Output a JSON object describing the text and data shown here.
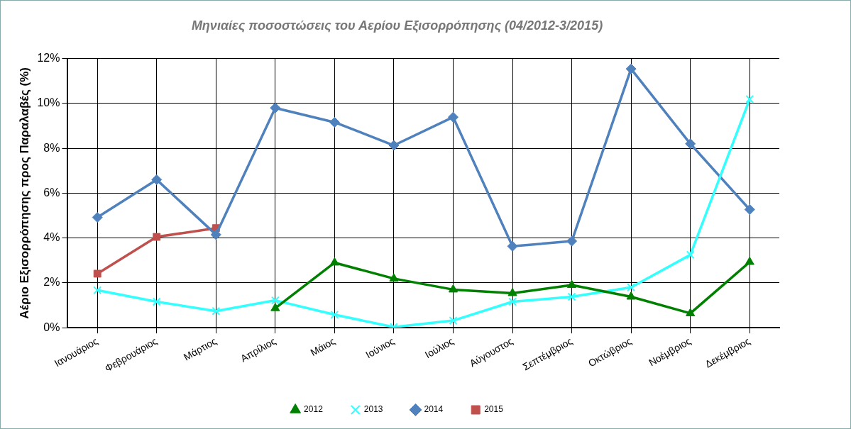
{
  "chart_data": {
    "type": "line",
    "title": "Μηνιαίες ποσοστώσεις του Αερίου Εξισορρόπησης (04/2012-3/2015)",
    "ylabel": "Αέριο Εξισορρόπησης προς Παραλαβές (%)",
    "categories": [
      "Ιανουάριος",
      "Φεβρουάριος",
      "Μάρτιος",
      "Απρίλιος",
      "Μάιος",
      "Ιούνιος",
      "Ιούλιος",
      "Αύγουστος",
      "Σεπτέμβριος",
      "Οκτώβριος",
      "Νοέμβριος",
      "Δεκέμβριος"
    ],
    "series": [
      {
        "name": "2012",
        "color": "#008000",
        "marker": "triangle",
        "values": [
          null,
          null,
          null,
          0.87,
          2.9,
          2.19,
          1.7,
          1.54,
          1.9,
          1.38,
          0.64,
          2.93
        ]
      },
      {
        "name": "2013",
        "color": "#33ffff",
        "marker": "cross",
        "values": [
          1.67,
          1.16,
          0.74,
          1.22,
          0.58,
          0.03,
          0.32,
          1.16,
          1.38,
          1.8,
          3.25,
          10.19
        ]
      },
      {
        "name": "2014",
        "color": "#4f81bd",
        "marker": "diamond",
        "values": [
          4.92,
          6.6,
          4.15,
          9.8,
          9.16,
          8.13,
          9.39,
          3.63,
          3.86,
          11.54,
          8.2,
          5.27
        ]
      },
      {
        "name": "2015",
        "color": "#c0504d",
        "marker": "square",
        "values": [
          2.41,
          4.05,
          4.44,
          null,
          null,
          null,
          null,
          null,
          null,
          null,
          null,
          null
        ]
      }
    ],
    "ylim": [
      0,
      12
    ],
    "yticks": [
      {
        "value": 0,
        "label": "0%"
      },
      {
        "value": 2,
        "label": "2%"
      },
      {
        "value": 4,
        "label": "4%"
      },
      {
        "value": 6,
        "label": "6%"
      },
      {
        "value": 8,
        "label": "8%"
      },
      {
        "value": 10,
        "label": "10%"
      },
      {
        "value": 12,
        "label": "12%"
      }
    ],
    "grid": true,
    "legend": "bottom"
  }
}
